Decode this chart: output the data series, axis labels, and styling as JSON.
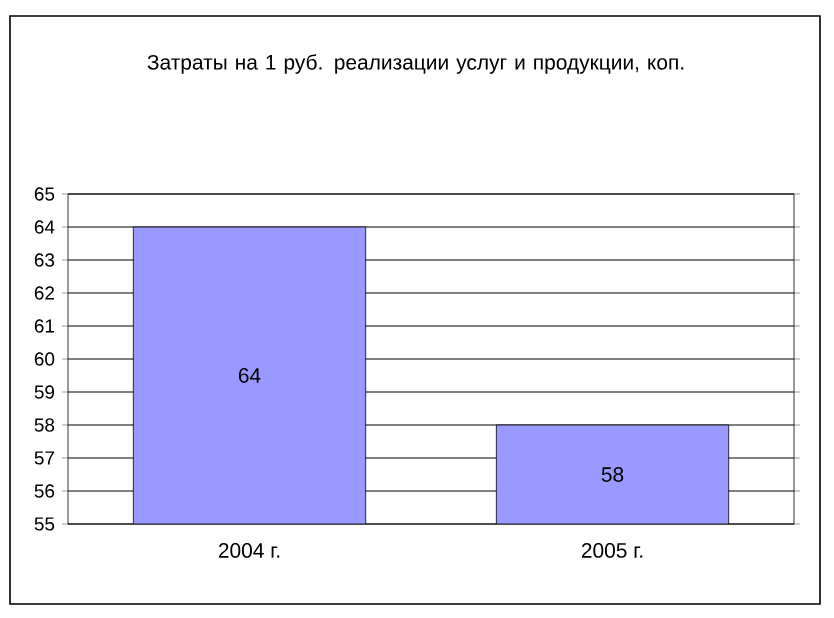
{
  "chart_data": {
    "type": "bar",
    "title": "Затраты на 1 руб. реализации услуг и продукции, коп.",
    "categories": [
      "2004 г.",
      "2005 г."
    ],
    "values": [
      64,
      58
    ],
    "color": "#9999ff",
    "ylim": [
      55,
      65
    ],
    "yticks": [
      55,
      56,
      57,
      58,
      59,
      60,
      61,
      62,
      63,
      64,
      65
    ],
    "grid": "y",
    "data_labels": true
  }
}
